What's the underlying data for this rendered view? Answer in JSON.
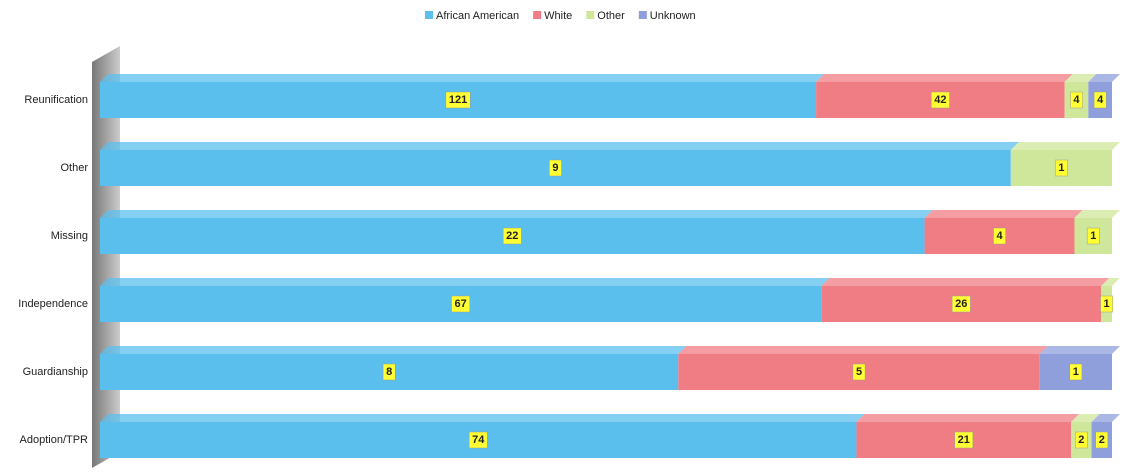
{
  "chart_data": {
    "type": "bar",
    "orientation": "horizontal",
    "stacking": "percent",
    "legend": "top",
    "categories": [
      "Reunification",
      "Other",
      "Missing",
      "Independence",
      "Guardianship",
      "Adoption/TPR"
    ],
    "series": [
      {
        "name": "African American",
        "color": "#5bbfee",
        "values": [
          121,
          9,
          22,
          67,
          8,
          74
        ]
      },
      {
        "name": "White",
        "color": "#f07c84",
        "values": [
          42,
          null,
          4,
          26,
          5,
          21
        ]
      },
      {
        "name": "Other",
        "color": "#cfe79a",
        "values": [
          4,
          1,
          1,
          1,
          null,
          2
        ]
      },
      {
        "name": "Unknown",
        "color": "#8f9fdc",
        "values": [
          4,
          null,
          null,
          null,
          1,
          2
        ]
      }
    ]
  }
}
